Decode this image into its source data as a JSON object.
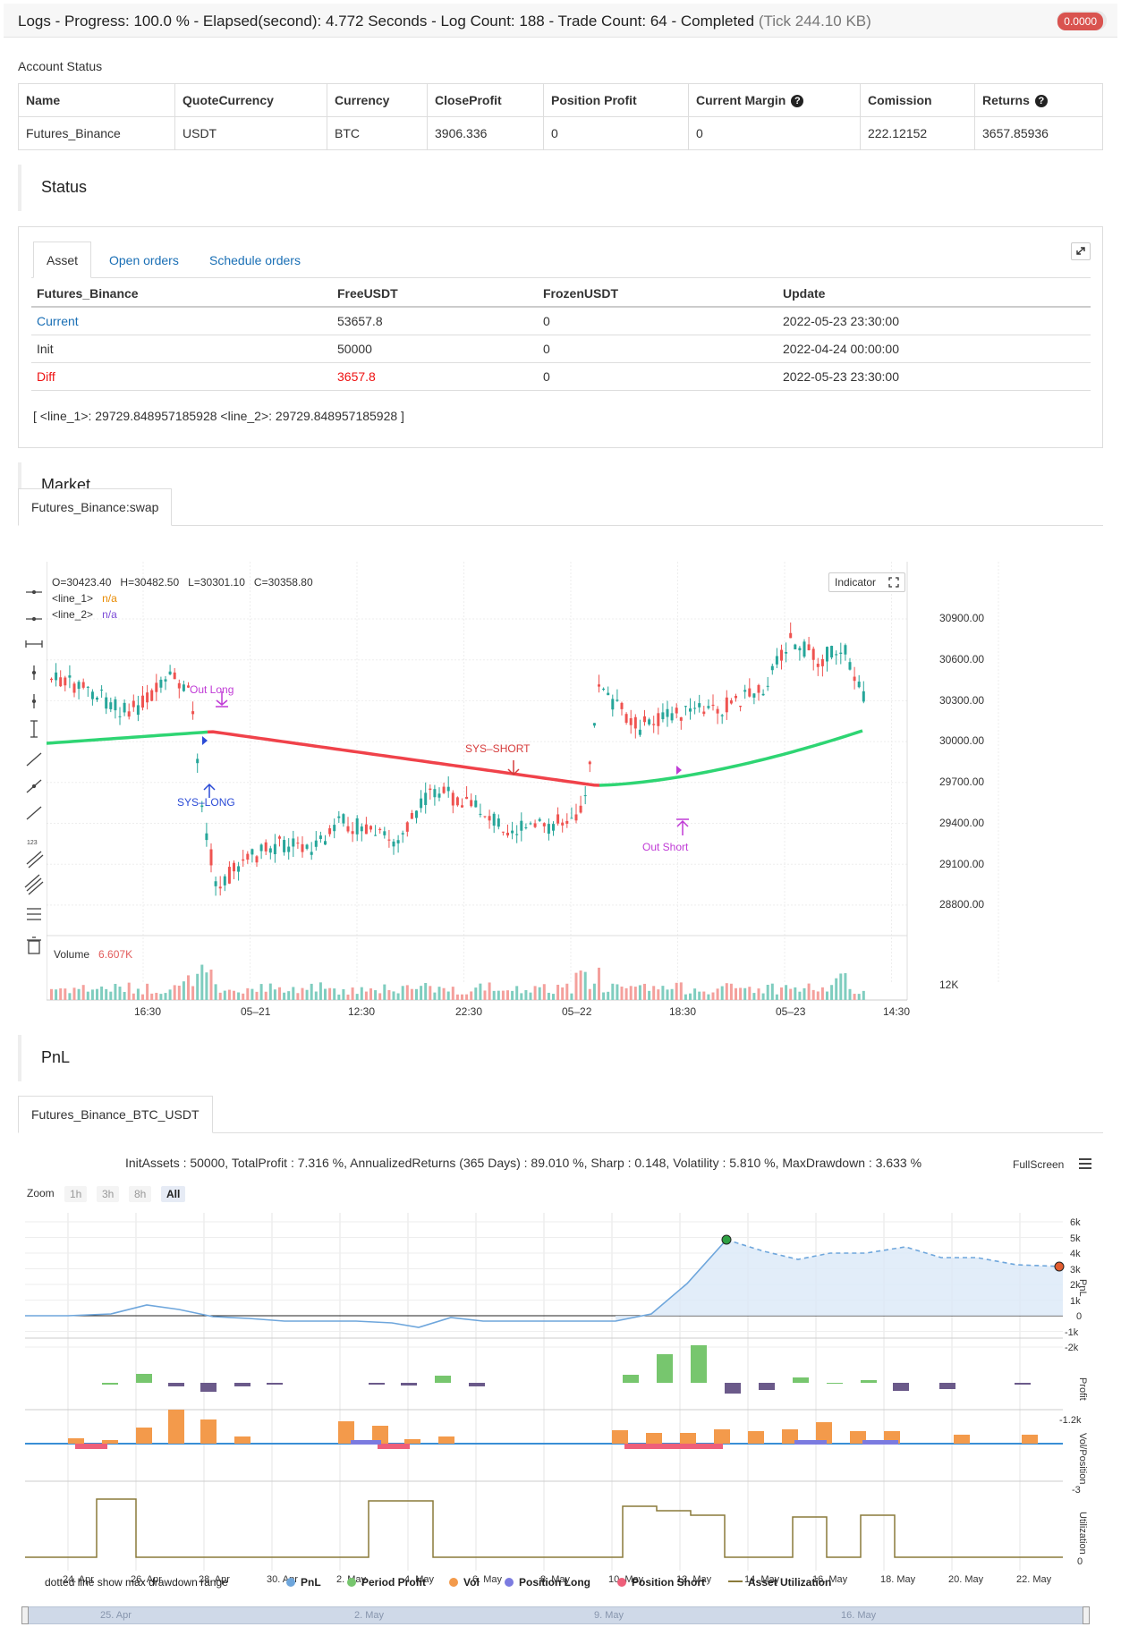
{
  "topbar": {
    "title": "Logs - Progress: 100.0 % - Elapsed(second): 4.772 Seconds - Log Count: 188 - Trade Count: 64 - Completed",
    "tick": "(Tick 244.10 KB)",
    "badge": "0.0000"
  },
  "account": {
    "label": "Account Status",
    "headers": [
      "Name",
      "QuoteCurrency",
      "Currency",
      "CloseProfit",
      "Position Profit",
      "Current Margin",
      "Comission",
      "Returns"
    ],
    "row": [
      "Futures_Binance",
      "USDT",
      "BTC",
      "3906.336",
      "0",
      "0",
      "222.12152",
      "3657.85936"
    ]
  },
  "status": {
    "title": "Status",
    "tabs": [
      "Asset",
      "Open orders",
      "Schedule orders"
    ],
    "headers": [
      "Futures_Binance",
      "FreeUSDT",
      "FrozenUSDT",
      "Update"
    ],
    "rows": [
      [
        "Current",
        "53657.8",
        "0",
        "2022-05-23 23:30:00"
      ],
      [
        "Init",
        "50000",
        "0",
        "2022-04-24 00:00:00"
      ],
      [
        "Diff",
        "3657.8",
        "0",
        "2022-05-23 23:30:00"
      ]
    ],
    "note": "[ <line_1>: 29729.848957185928 <line_2>: 29729.848957185928 ]"
  },
  "market": {
    "title": "Market",
    "tab": "Futures_Binance:swap",
    "ohlc": {
      "o": "O=30423.40",
      "h": "H=30482.50",
      "l": "L=30301.10",
      "c": "C=30358.80"
    },
    "line1": "<line_1>",
    "line1_val": "n/a",
    "line2": "<line_2>",
    "line2_val": "n/a",
    "indicator_btn": "Indicator",
    "price_ticks": [
      "30900.00",
      "30600.00",
      "30300.00",
      "30000.00",
      "29700.00",
      "29400.00",
      "29100.00",
      "28800.00"
    ],
    "volume_label": "Volume",
    "volume_val": "6.607K",
    "volume_tick": "12K",
    "time_ticks": [
      "16:30",
      "05–21",
      "12:30",
      "22:30",
      "05–22",
      "18:30",
      "05–23",
      "14:30"
    ],
    "annotations": {
      "out_long": "Out Long",
      "sys_long": "SYS–LONG",
      "sys_short": "SYS–SHORT",
      "out_short": "Out Short"
    }
  },
  "pnl": {
    "title": "PnL",
    "tab": "Futures_Binance_BTC_USDT",
    "summary": "InitAssets : 50000, TotalProfit : 7.316 %, AnnualizedReturns (365 Days) : 89.010 %, Sharp : 0.148, Volatility : 5.810 %, MaxDrawdown : 3.633 %",
    "fullscreen": "FullScreen",
    "zoom_label": "Zoom",
    "zoom_buttons": [
      "1h",
      "3h",
      "8h",
      "All"
    ],
    "pnl_ticks": [
      "6k",
      "5k",
      "4k",
      "3k",
      "2k",
      "1k",
      "0",
      "-1k",
      "-2k"
    ],
    "profit_tick": "-1.2k",
    "vol_tick": "-3",
    "util_tick": "0",
    "axis_titles": [
      "PnL",
      "Profit",
      "Vol/Position",
      "Utilization"
    ],
    "date_ticks": [
      "24. Apr",
      "26. Apr",
      "28. Apr",
      "30. Apr",
      "2. May",
      "4. May",
      "6. May",
      "8. May",
      "10. May",
      "12. May",
      "14. May",
      "16. May",
      "18. May",
      "20. May",
      "22. May"
    ],
    "nav_ticks": [
      "25. Apr",
      "2. May",
      "9. May",
      "16. May"
    ],
    "footnote": "dotted line show max drawdown range",
    "legend": [
      "PnL",
      "Period Profit",
      "Vol",
      "Position Long",
      "Position Short",
      "Asset Utilization"
    ],
    "colors": {
      "pnl": "#6ea6dc",
      "profit": "#77c66e",
      "vol": "#f39a4b",
      "long": "#7b7be0",
      "short": "#ee5f7a",
      "util": "#8a7a3a",
      "up": "#3aa",
      "down": "#e25c5c"
    }
  }
}
